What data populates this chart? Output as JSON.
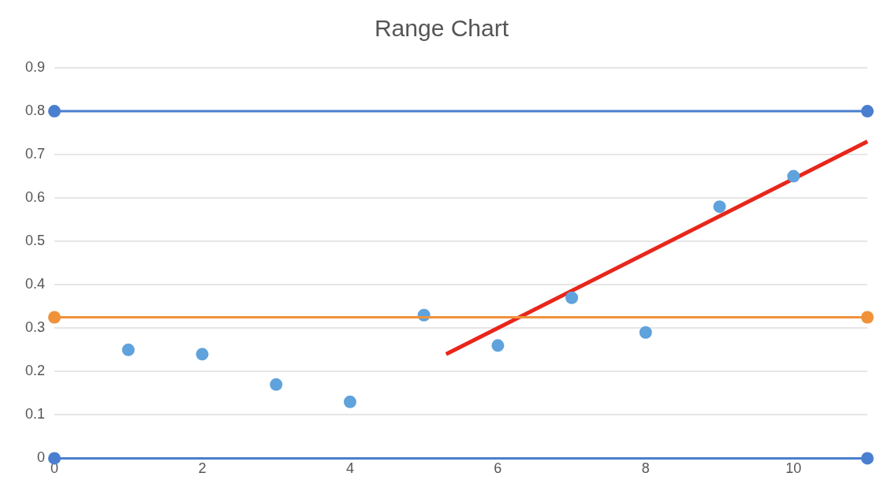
{
  "chart_data": {
    "type": "scatter",
    "title": "Range Chart",
    "xlim": [
      0,
      11
    ],
    "xticks": [
      0,
      2,
      4,
      6,
      8,
      10
    ],
    "ylim": [
      0,
      0.9
    ],
    "yticks": [
      0,
      0.1,
      0.2,
      0.3,
      0.4,
      0.5,
      0.6,
      0.7,
      0.8,
      0.9
    ],
    "grid": "y",
    "legend": false,
    "marker": "circle",
    "series": [
      {
        "type": "line",
        "color": "#4a7fcf",
        "x": [
          0,
          11
        ],
        "values": [
          0.8,
          0.8
        ]
      },
      {
        "type": "line",
        "color": "#4a7fcf",
        "x": [
          0,
          11
        ],
        "values": [
          0,
          0
        ]
      },
      {
        "type": "line",
        "color": "#f0923a",
        "x": [
          0,
          11
        ],
        "values": [
          0.325,
          0.325
        ]
      },
      {
        "type": "scatter",
        "color": "#5fa2dc",
        "x": [
          1,
          2,
          3,
          4,
          5,
          6,
          7,
          8,
          9,
          10
        ],
        "values": [
          0.25,
          0.24,
          0.17,
          0.13,
          0.33,
          0.26,
          0.37,
          0.29,
          0.58,
          0.65
        ]
      },
      {
        "type": "line",
        "color": "#e8261b",
        "marker": "none",
        "x": [
          5.3,
          11
        ],
        "values": [
          0.24,
          0.73
        ]
      }
    ]
  }
}
